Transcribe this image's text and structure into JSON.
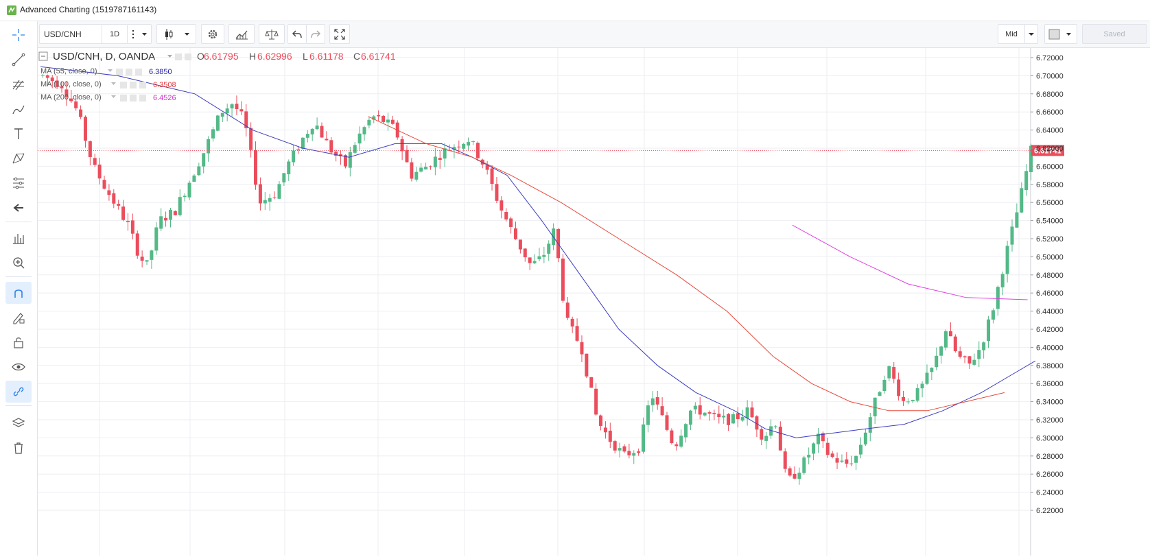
{
  "window": {
    "title": "Advanced Charting (1519787161143)"
  },
  "toolbar": {
    "symbol": "USD/CNH",
    "interval": "1D",
    "price_source": "Mid",
    "saved_label": "Saved"
  },
  "sidebar": {
    "tools": [
      "crosshair-icon",
      "trend-line-icon",
      "fib-icon",
      "brush-icon",
      "text-icon",
      "pattern-icon",
      "prediction-icon",
      "back-arrow-icon",
      "measure-icon",
      "zoom-in-icon",
      "magnet-icon",
      "lock-draw-icon",
      "lock-icon",
      "eye-icon",
      "link-icon",
      "layers-icon",
      "trash-icon"
    ]
  },
  "legend": {
    "main": "USD/CNH, D, OANDA",
    "open_label": "O",
    "open": "6.61795",
    "high_label": "H",
    "high": "6.62996",
    "low_label": "L",
    "low": "6.61178",
    "close_label": "C",
    "close": "6.61741",
    "studies": [
      {
        "label": "MA (55, close, 0)",
        "value": "6.3850",
        "color": "#1a1aa6"
      },
      {
        "label": "MA (100, close, 0)",
        "value": "6.3508",
        "color": "#e03a3a"
      },
      {
        "label": "MA (200, close, 0)",
        "value": "6.4526",
        "color": "#d22fd2"
      }
    ]
  },
  "colors": {
    "up": "#53b987",
    "down": "#eb4d5c",
    "ma55": "#3d3dbf",
    "ma100": "#e8493a",
    "ma200": "#e040e0",
    "last_price_bg": "#eb4d5c",
    "grid": "#eceef2"
  },
  "chart_data": {
    "type": "candlestick",
    "symbol": "USD/CNH",
    "interval": "D",
    "y_axis": {
      "min": 6.21,
      "max": 6.73,
      "ticks": [
        "6.72000",
        "6.70000",
        "6.68000",
        "6.66000",
        "6.64000",
        "6.62000",
        "6.60000",
        "6.58000",
        "6.56000",
        "6.54000",
        "6.52000",
        "6.50000",
        "6.48000",
        "6.46000",
        "6.44000",
        "6.42000",
        "6.40000",
        "6.38000",
        "6.36000",
        "6.34000",
        "6.32000",
        "6.30000",
        "6.28000",
        "6.26000",
        "6.24000",
        "6.22000"
      ]
    },
    "last_price": "6.61741",
    "candle_count": 210,
    "price_path_anchors": [
      [
        0,
        6.7
      ],
      [
        5,
        6.69
      ],
      [
        9,
        6.66
      ],
      [
        13,
        6.6
      ],
      [
        17,
        6.57
      ],
      [
        22,
        6.535
      ],
      [
        25,
        6.5
      ],
      [
        27,
        6.49
      ],
      [
        30,
        6.54
      ],
      [
        34,
        6.55
      ],
      [
        38,
        6.585
      ],
      [
        42,
        6.62
      ],
      [
        46,
        6.66
      ],
      [
        49,
        6.67
      ],
      [
        52,
        6.65
      ],
      [
        56,
        6.56
      ],
      [
        60,
        6.57
      ],
      [
        63,
        6.6
      ],
      [
        67,
        6.63
      ],
      [
        70,
        6.65
      ],
      [
        74,
        6.62
      ],
      [
        78,
        6.6
      ],
      [
        81,
        6.63
      ],
      [
        85,
        6.655
      ],
      [
        88,
        6.65
      ],
      [
        91,
        6.64
      ],
      [
        95,
        6.59
      ],
      [
        99,
        6.6
      ],
      [
        103,
        6.615
      ],
      [
        107,
        6.625
      ],
      [
        110,
        6.63
      ],
      [
        114,
        6.6
      ],
      [
        118,
        6.555
      ],
      [
        122,
        6.52
      ],
      [
        126,
        6.49
      ],
      [
        129,
        6.5
      ],
      [
        132,
        6.53
      ],
      [
        135,
        6.43
      ],
      [
        139,
        6.4
      ],
      [
        143,
        6.32
      ],
      [
        146,
        6.3
      ],
      [
        150,
        6.28
      ],
      [
        154,
        6.29
      ],
      [
        157,
        6.35
      ],
      [
        160,
        6.32
      ],
      [
        163,
        6.29
      ],
      [
        167,
        6.33
      ],
      [
        170,
        6.33
      ],
      [
        174,
        6.32
      ],
      [
        178,
        6.32
      ],
      [
        182,
        6.33
      ],
      [
        186,
        6.3
      ],
      [
        189,
        6.32
      ],
      [
        192,
        6.25
      ],
      [
        196,
        6.27
      ],
      [
        200,
        6.3
      ],
      [
        203,
        6.28
      ],
      [
        207,
        6.27
      ],
      [
        210,
        6.28
      ],
      [
        214,
        6.33
      ],
      [
        218,
        6.38
      ],
      [
        222,
        6.34
      ],
      [
        226,
        6.35
      ],
      [
        230,
        6.38
      ],
      [
        233,
        6.42
      ],
      [
        236,
        6.39
      ],
      [
        239,
        6.38
      ],
      [
        242,
        6.4
      ],
      [
        245,
        6.44
      ],
      [
        249,
        6.51
      ],
      [
        252,
        6.56
      ],
      [
        255,
        6.617
      ]
    ],
    "ma55": {
      "name": "MA (55, close, 0)",
      "value": 6.385,
      "points": [
        [
          0,
          6.71
        ],
        [
          20,
          6.7
        ],
        [
          40,
          6.68
        ],
        [
          55,
          6.64
        ],
        [
          68,
          6.62
        ],
        [
          80,
          6.61
        ],
        [
          92,
          6.625
        ],
        [
          104,
          6.625
        ],
        [
          112,
          6.61
        ],
        [
          121,
          6.59
        ],
        [
          130,
          6.54
        ],
        [
          140,
          6.48
        ],
        [
          150,
          6.42
        ],
        [
          160,
          6.38
        ],
        [
          170,
          6.35
        ],
        [
          180,
          6.33
        ],
        [
          188,
          6.31
        ],
        [
          196,
          6.3
        ],
        [
          205,
          6.305
        ],
        [
          214,
          6.31
        ],
        [
          224,
          6.315
        ],
        [
          234,
          6.33
        ],
        [
          244,
          6.35
        ],
        [
          252,
          6.37
        ],
        [
          258,
          6.385
        ]
      ]
    },
    "ma100": {
      "name": "MA (100, close, 0)",
      "value": 6.3508,
      "points": [
        [
          85,
          6.655
        ],
        [
          100,
          6.625
        ],
        [
          112,
          6.61
        ],
        [
          122,
          6.59
        ],
        [
          135,
          6.56
        ],
        [
          150,
          6.52
        ],
        [
          165,
          6.48
        ],
        [
          178,
          6.44
        ],
        [
          190,
          6.39
        ],
        [
          200,
          6.36
        ],
        [
          210,
          6.34
        ],
        [
          220,
          6.33
        ],
        [
          230,
          6.33
        ],
        [
          240,
          6.34
        ],
        [
          250,
          6.35
        ]
      ]
    },
    "ma200": {
      "name": "MA (200, close, 0)",
      "value": 6.4526,
      "points": [
        [
          195,
          6.535
        ],
        [
          210,
          6.5
        ],
        [
          225,
          6.47
        ],
        [
          240,
          6.455
        ],
        [
          256,
          6.4526
        ]
      ]
    }
  }
}
